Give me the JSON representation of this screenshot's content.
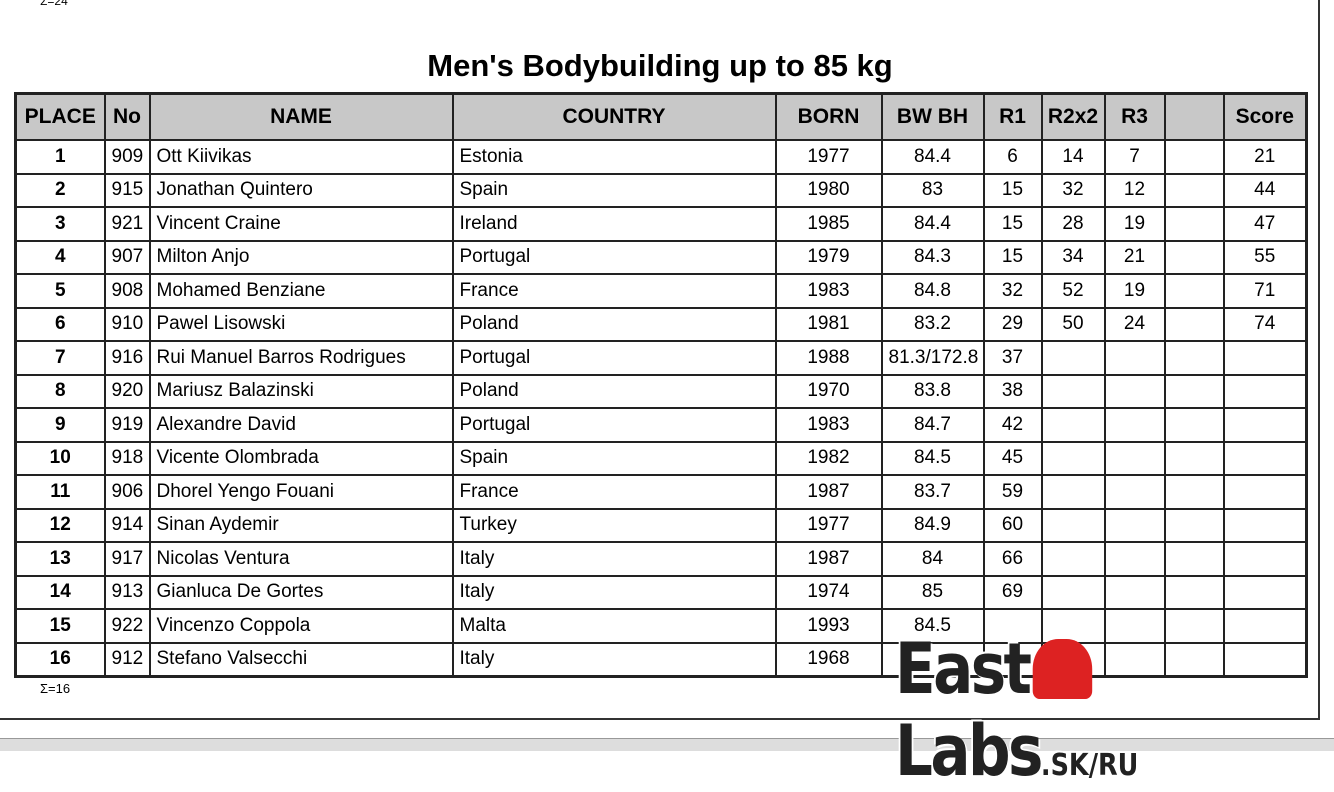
{
  "top_note": "Σ=24",
  "title": "Men's Bodybuilding up to 85 kg",
  "table": {
    "headers": [
      "PLACE",
      "No",
      "NAME",
      "COUNTRY",
      "BORN",
      "BW BH",
      "R1",
      "R2x2",
      "R3",
      "Score"
    ],
    "rows": [
      {
        "place": "1",
        "no": "909",
        "name": "Ott Kiivikas",
        "country": "Estonia",
        "born": "1977",
        "bw": "84.4",
        "r1": "6",
        "r2": "14",
        "r3": "7",
        "score": "21"
      },
      {
        "place": "2",
        "no": "915",
        "name": "Jonathan Quintero",
        "country": "Spain",
        "born": "1980",
        "bw": "83",
        "r1": "15",
        "r2": "32",
        "r3": "12",
        "score": "44"
      },
      {
        "place": "3",
        "no": "921",
        "name": "Vincent Craine",
        "country": "Ireland",
        "born": "1985",
        "bw": "84.4",
        "r1": "15",
        "r2": "28",
        "r3": "19",
        "score": "47"
      },
      {
        "place": "4",
        "no": "907",
        "name": "Milton Anjo",
        "country": "Portugal",
        "born": "1979",
        "bw": "84.3",
        "r1": "15",
        "r2": "34",
        "r3": "21",
        "score": "55"
      },
      {
        "place": "5",
        "no": "908",
        "name": "Mohamed Benziane",
        "country": "France",
        "born": "1983",
        "bw": "84.8",
        "r1": "32",
        "r2": "52",
        "r3": "19",
        "score": "71"
      },
      {
        "place": "6",
        "no": "910",
        "name": "Pawel Lisowski",
        "country": "Poland",
        "born": "1981",
        "bw": "83.2",
        "r1": "29",
        "r2": "50",
        "r3": "24",
        "score": "74"
      },
      {
        "place": "7",
        "no": "916",
        "name": "Rui Manuel Barros Rodrigues",
        "country": "Portugal",
        "born": "1988",
        "bw": "81.3/172.8",
        "r1": "37"
      },
      {
        "place": "8",
        "no": "920",
        "name": "Mariusz Balazinski",
        "country": "Poland",
        "born": "1970",
        "bw": "83.8",
        "r1": "38"
      },
      {
        "place": "9",
        "no": "919",
        "name": "Alexandre David",
        "country": "Portugal",
        "born": "1983",
        "bw": "84.7",
        "r1": "42"
      },
      {
        "place": "10",
        "no": "918",
        "name": "Vicente Olombrada",
        "country": "Spain",
        "born": "1982",
        "bw": "84.5",
        "r1": "45"
      },
      {
        "place": "11",
        "no": "906",
        "name": "Dhorel Yengo Fouani",
        "country": "France",
        "born": "1987",
        "bw": "83.7",
        "r1": "59"
      },
      {
        "place": "12",
        "no": "914",
        "name": "Sinan Aydemir",
        "country": "Turkey",
        "born": "1977",
        "bw": "84.9",
        "r1": "60"
      },
      {
        "place": "13",
        "no": "917",
        "name": "Nicolas Ventura",
        "country": "Italy",
        "born": "1987",
        "bw": "84",
        "r1": "66"
      },
      {
        "place": "14",
        "no": "913",
        "name": "Gianluca De Gortes",
        "country": "Italy",
        "born": "1974",
        "bw": "85",
        "r1": "69"
      },
      {
        "place": "15",
        "no": "922",
        "name": "Vincenzo Coppola",
        "country": "Malta",
        "born": "1993",
        "bw": "84.5"
      },
      {
        "place": "16",
        "no": "912",
        "name": "Stefano Valsecchi",
        "country": "Italy",
        "born": "1968"
      }
    ]
  },
  "footer_note": "Σ=16",
  "watermark": {
    "part1": "East",
    "part2": "Labs",
    "suffix": ".SK/RU"
  }
}
